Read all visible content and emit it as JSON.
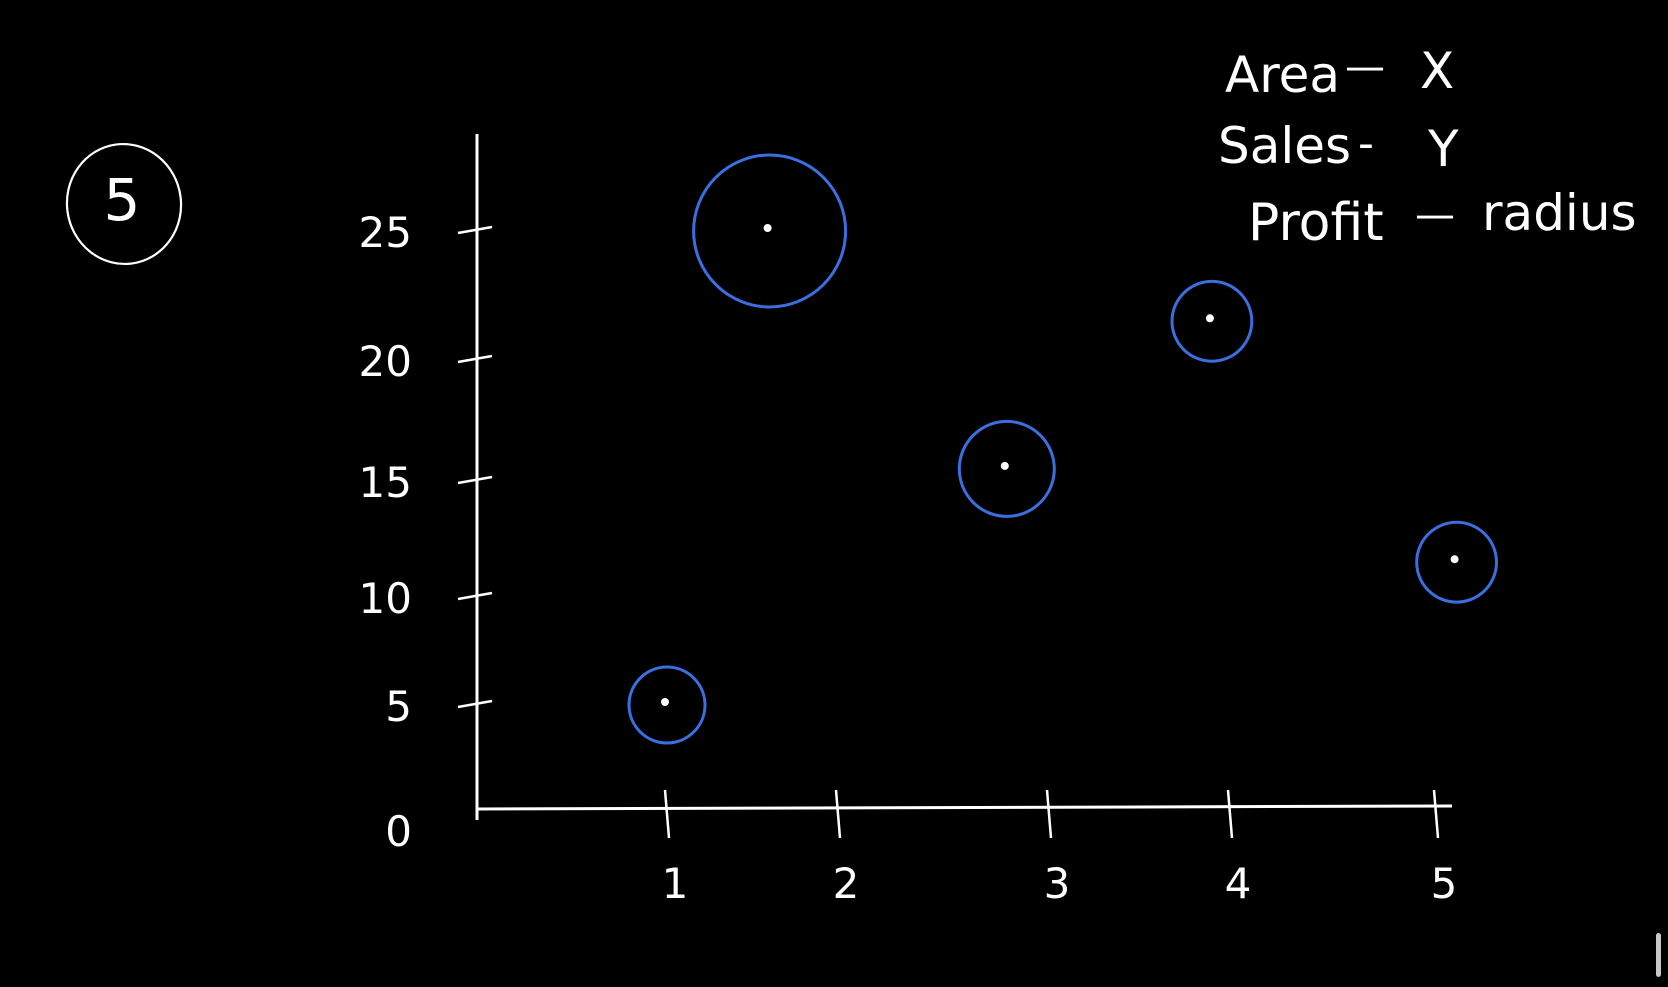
{
  "problem_number": "5",
  "legend_notes": [
    {
      "label": "Area",
      "sep": "—",
      "value": "X"
    },
    {
      "label": "Sales",
      "sep": "-",
      "value": "Y"
    },
    {
      "label": "Profit",
      "sep": "—",
      "value": "radius"
    }
  ],
  "colors": {
    "background": "#000000",
    "ink": "#ffffff",
    "bubble": "#3b6fe0"
  },
  "chart_data": {
    "type": "scatter",
    "subtype": "bubble",
    "x_ticks": [
      "1",
      "2",
      "3",
      "4",
      "5"
    ],
    "y_ticks": [
      "0",
      "5",
      "10",
      "15",
      "20",
      "25"
    ],
    "xlim": [
      0,
      5.2
    ],
    "ylim": [
      0,
      28
    ],
    "points": [
      {
        "x": 1.0,
        "y": 5.0,
        "r": 1.0
      },
      {
        "x": 1.6,
        "y": 25.0,
        "r": 2.0
      },
      {
        "x": 2.8,
        "y": 15.5,
        "r": 1.25
      },
      {
        "x": 3.9,
        "y": 21.5,
        "r": 1.05
      },
      {
        "x": 5.1,
        "y": 11.5,
        "r": 1.05
      }
    ],
    "grid": false
  }
}
